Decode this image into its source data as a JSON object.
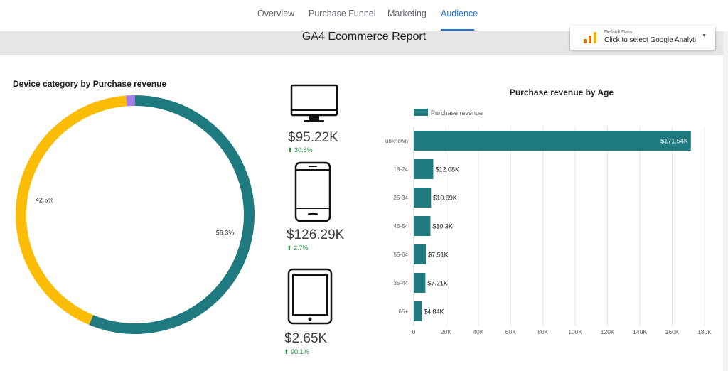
{
  "nav": {
    "tabs": [
      {
        "label": "Overview",
        "active": false
      },
      {
        "label": "Purchase Funnel",
        "active": false
      },
      {
        "label": "Marketing",
        "active": false
      },
      {
        "label": "Audience",
        "active": true
      }
    ]
  },
  "header": {
    "title": "GA4 Ecommerce Report",
    "data_source_small": "Default Data",
    "data_source_label": "Click to select Google Analyti"
  },
  "kpis": [
    {
      "device": "desktop",
      "value": "$95.22K",
      "delta": "30.6%"
    },
    {
      "device": "mobile",
      "value": "$126.29K",
      "delta": "2.7%"
    },
    {
      "device": "tablet",
      "value": "$2.65K",
      "delta": "90.1%"
    }
  ],
  "colors": {
    "teal": "#1f7a80",
    "yellow": "#fbbc05",
    "purple": "#a77de8",
    "accent": "#1a73e8",
    "positive": "#1e8e3e"
  },
  "chart_data": [
    {
      "type": "pie",
      "title": "Device category by Purchase revenue",
      "donut": true,
      "slices": [
        {
          "name": "mobile",
          "value": 56.3,
          "label": "56.3%",
          "color": "#1f7a80"
        },
        {
          "name": "desktop",
          "value": 42.5,
          "label": "42.5%",
          "color": "#fbbc05"
        },
        {
          "name": "tablet",
          "value": 1.2,
          "label": "",
          "color": "#a77de8"
        }
      ]
    },
    {
      "type": "bar",
      "orientation": "horizontal",
      "title": "Purchase revenue by Age",
      "legend": "top-left",
      "series_name": "Purchase revenue",
      "categories": [
        "unknown",
        "18-24",
        "25-34",
        "45-54",
        "55-64",
        "35-44",
        "65+"
      ],
      "values": [
        171.54,
        12.08,
        10.69,
        10.3,
        7.51,
        7.21,
        4.84
      ],
      "value_labels": [
        "$171.54K",
        "$12.08K",
        "$10.69K",
        "$10.3K",
        "$7.51K",
        "$7.21K",
        "$4.84K"
      ],
      "xlim": [
        0,
        180
      ],
      "x_ticks": [
        "0",
        "20K",
        "40K",
        "60K",
        "80K",
        "100K",
        "120K",
        "140K",
        "160K",
        "180K"
      ],
      "grid": true
    }
  ]
}
